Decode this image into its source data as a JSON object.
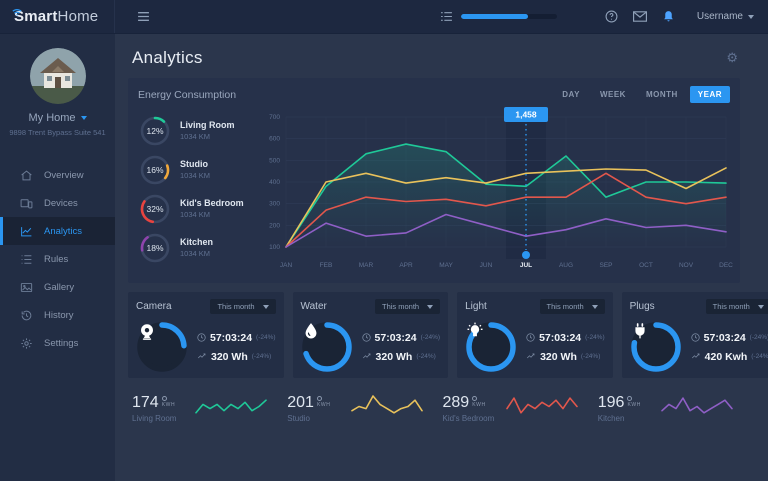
{
  "topbar": {
    "brand_bold": "Smart",
    "brand_light": "Home",
    "progress_pct": 70,
    "username": "Username"
  },
  "sidebar": {
    "home_name": "My Home",
    "home_address": "9898 Trent Bypass Suite 541",
    "items": [
      {
        "label": "Overview",
        "icon": "home",
        "active": false
      },
      {
        "label": "Devices",
        "icon": "devices",
        "active": false
      },
      {
        "label": "Analytics",
        "icon": "chart",
        "active": true
      },
      {
        "label": "Rules",
        "icon": "rules",
        "active": false
      },
      {
        "label": "Gallery",
        "icon": "gallery",
        "active": false
      },
      {
        "label": "History",
        "icon": "history",
        "active": false
      },
      {
        "label": "Settings",
        "icon": "gear",
        "active": false
      }
    ]
  },
  "page": {
    "title": "Analytics"
  },
  "energy_panel": {
    "title": "Energy Consumption",
    "tabs": [
      "DAY",
      "WEEK",
      "MONTH",
      "YEAR"
    ],
    "active_tab": "YEAR",
    "legend": [
      {
        "pct": "12%",
        "label": "Living Room",
        "sub": "1034 KM",
        "color": "#1fc998",
        "fill": 12
      },
      {
        "pct": "16%",
        "label": "Studio",
        "sub": "1034 KM",
        "color": "#f0a83c",
        "fill": 16
      },
      {
        "pct": "32%",
        "label": "Kid's Bedroom",
        "sub": "1034 KM",
        "color": "#e8433f",
        "fill": 32
      },
      {
        "pct": "18%",
        "label": "Kitchen",
        "sub": "1034 KM",
        "color": "#8e44ad",
        "fill": 18
      }
    ]
  },
  "chart_data": {
    "type": "line",
    "x": [
      "JAN",
      "FEB",
      "MAR",
      "APR",
      "MAY",
      "JUN",
      "JUL",
      "AUG",
      "SEP",
      "OCT",
      "NOV",
      "DEC"
    ],
    "ylim": [
      100,
      700
    ],
    "yticks": [
      700,
      600,
      500,
      400,
      300,
      200,
      100
    ],
    "grid": true,
    "legend_position": "left",
    "series": [
      {
        "name": "Living Room",
        "color": "#1fc998",
        "values": [
          100,
          380,
          530,
          575,
          540,
          390,
          380,
          520,
          330,
          400,
          400,
          395
        ]
      },
      {
        "name": "Studio",
        "color": "#e9c25b",
        "values": [
          100,
          400,
          440,
          395,
          420,
          395,
          440,
          450,
          460,
          455,
          370,
          465
        ]
      },
      {
        "name": "Kid's Bedroom",
        "color": "#e2574c",
        "values": [
          100,
          270,
          330,
          310,
          320,
          290,
          330,
          330,
          440,
          330,
          300,
          330
        ]
      },
      {
        "name": "Kitchen",
        "color": "#8f5fc6",
        "values": [
          100,
          210,
          150,
          165,
          250,
          200,
          150,
          180,
          230,
          190,
          200,
          170
        ]
      }
    ],
    "highlight": {
      "x": "JUL",
      "value": "1,458"
    }
  },
  "cards": [
    {
      "title": "Camera",
      "period": "This month",
      "icon": "camera",
      "gauge_pct": 24,
      "gauge_color": "#2b96f1",
      "time": "57:03:24",
      "time_delta": "(-24%)",
      "usage": "320 Wh",
      "usage_delta": "(-24%)"
    },
    {
      "title": "Water",
      "period": "This month",
      "icon": "water",
      "gauge_pct": 70,
      "gauge_color": "#2b96f1",
      "time": "57:03:24",
      "time_delta": "(-24%)",
      "usage": "320 Wh",
      "usage_delta": "(-24%)"
    },
    {
      "title": "Light",
      "period": "This month",
      "icon": "light",
      "gauge_pct": 88,
      "gauge_color": "#2b96f1",
      "time": "57:03:24",
      "time_delta": "(-24%)",
      "usage": "320 Wh",
      "usage_delta": "(-24%)"
    },
    {
      "title": "Plugs",
      "period": "This month",
      "icon": "plug",
      "gauge_pct": 78,
      "gauge_color": "#2b96f1",
      "time": "57:03:24",
      "time_delta": "(-24%)",
      "usage": "420 Kwh",
      "usage_delta": "(-24%)"
    }
  ],
  "room_stats": [
    {
      "value": "174",
      "unit": "KWH",
      "label": "Living Room",
      "color": "#1fc998",
      "spark": [
        2,
        6,
        4,
        6,
        3,
        6,
        4,
        7,
        3,
        5,
        8
      ]
    },
    {
      "value": "201",
      "unit": "KWH",
      "label": "Studio",
      "color": "#e9c25b",
      "spark": [
        3,
        5,
        4,
        10,
        6,
        4,
        2,
        4,
        5,
        8,
        3
      ]
    },
    {
      "value": "289",
      "unit": "KWH",
      "label": "Kid's Bedroom",
      "color": "#e2574c",
      "spark": [
        4,
        9,
        2,
        6,
        4,
        7,
        5,
        8,
        4,
        9,
        5
      ]
    },
    {
      "value": "196",
      "unit": "KWH",
      "label": "Kitchen",
      "color": "#8f5fc6",
      "spark": [
        3,
        6,
        4,
        9,
        3,
        5,
        2,
        4,
        6,
        8,
        4
      ]
    }
  ]
}
